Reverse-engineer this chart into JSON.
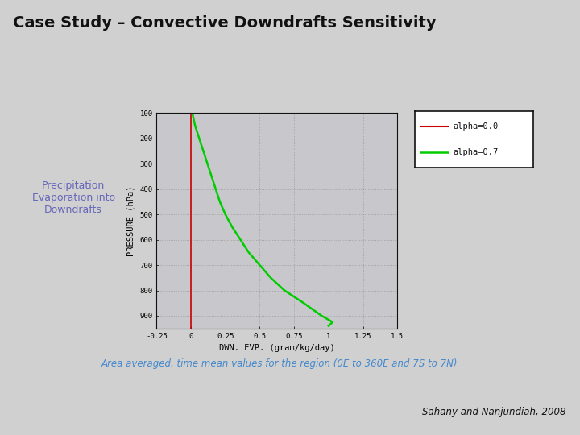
{
  "title": "Case Study – Convective Downdrafts Sensitivity",
  "subtitle_left": "Precipitation\nEvaporation into\nDowndrafts",
  "subtitle_bottom": "Area averaged, time mean values for the region (0E to 360E and 7S to 7N)",
  "citation": "Sahany and Nanjundiah, 2008",
  "bg_color": "#d0d0d0",
  "plot_bg_color": "#c8c8cc",
  "xlabel": "DWN. EVP. (gram/kg/day)",
  "ylabel": "PRESSURE (hPa)",
  "xlim": [
    -0.25,
    1.5
  ],
  "ylim": [
    950,
    100
  ],
  "xticks": [
    -0.25,
    0,
    0.25,
    0.5,
    0.75,
    1.0,
    1.25,
    1.5
  ],
  "yticks": [
    100,
    200,
    300,
    400,
    500,
    600,
    700,
    800,
    900
  ],
  "legend_entries": [
    "alpha=0.0",
    "alpha=0.7"
  ],
  "legend_colors": [
    "#cc0000",
    "#00cc00"
  ],
  "left_text_color": "#6666bb",
  "bottom_text_color": "#4488cc",
  "alpha00_pressure": [
    100,
    200,
    300,
    400,
    500,
    600,
    700,
    800,
    900,
    950
  ],
  "alpha00_evp": [
    0.0,
    0.0,
    0.0,
    0.0,
    0.0,
    0.0,
    0.0,
    0.0,
    0.0,
    0.0
  ],
  "alpha07_pressure": [
    100,
    150,
    200,
    250,
    300,
    350,
    400,
    450,
    500,
    550,
    600,
    650,
    700,
    750,
    800,
    850,
    900,
    925,
    940
  ],
  "alpha07_evp": [
    0.01,
    0.03,
    0.06,
    0.09,
    0.12,
    0.15,
    0.18,
    0.21,
    0.25,
    0.3,
    0.36,
    0.42,
    0.5,
    0.58,
    0.68,
    0.82,
    0.95,
    1.03,
    1.0
  ]
}
